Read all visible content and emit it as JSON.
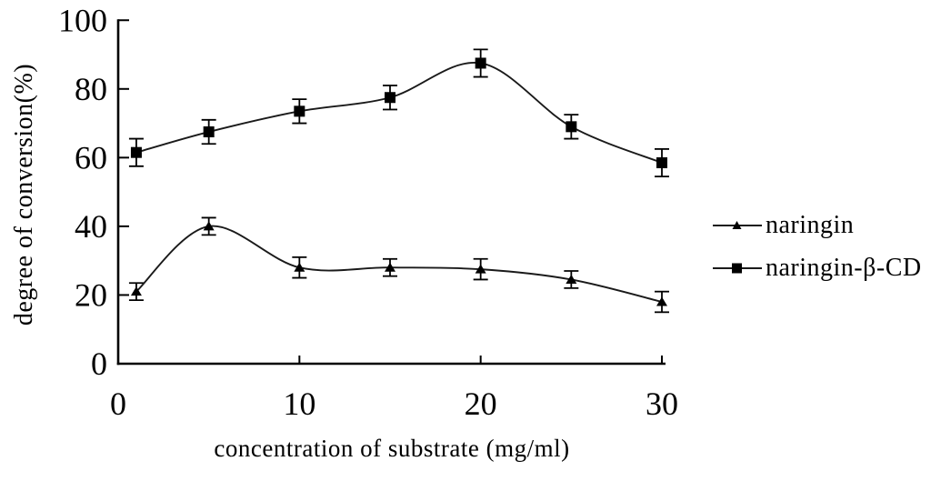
{
  "colors": {
    "line": "#1a1a1a",
    "marker": "#000000",
    "axis": "#000000",
    "text": "#000000",
    "background": "#ffffff"
  },
  "chart_data": {
    "type": "line",
    "title": "",
    "xlabel": "concentration of substrate (mg/ml)",
    "ylabel": "degree of conversion(%)",
    "xlim": [
      0,
      30.3
    ],
    "ylim": [
      0,
      100
    ],
    "x_ticks": [
      0,
      10,
      20,
      30
    ],
    "y_ticks": [
      0,
      20,
      40,
      60,
      80,
      100
    ],
    "grid": false,
    "legend_position": "right-outside",
    "x": [
      1,
      5,
      10,
      15,
      20,
      25,
      30
    ],
    "series": [
      {
        "name": "naringin",
        "marker": "triangle",
        "color": "#000000",
        "values": [
          21,
          40,
          28,
          28,
          27.5,
          24.5,
          18
        ],
        "errors": [
          2.5,
          2.5,
          3,
          2.5,
          3,
          2.5,
          3
        ]
      },
      {
        "name": "naringin-β-CD",
        "marker": "square",
        "color": "#000000",
        "values": [
          61.5,
          67.5,
          73.5,
          77.5,
          87.5,
          69,
          58.5
        ],
        "errors": [
          4,
          3.5,
          3.5,
          3.5,
          4,
          3.5,
          4
        ]
      }
    ]
  }
}
